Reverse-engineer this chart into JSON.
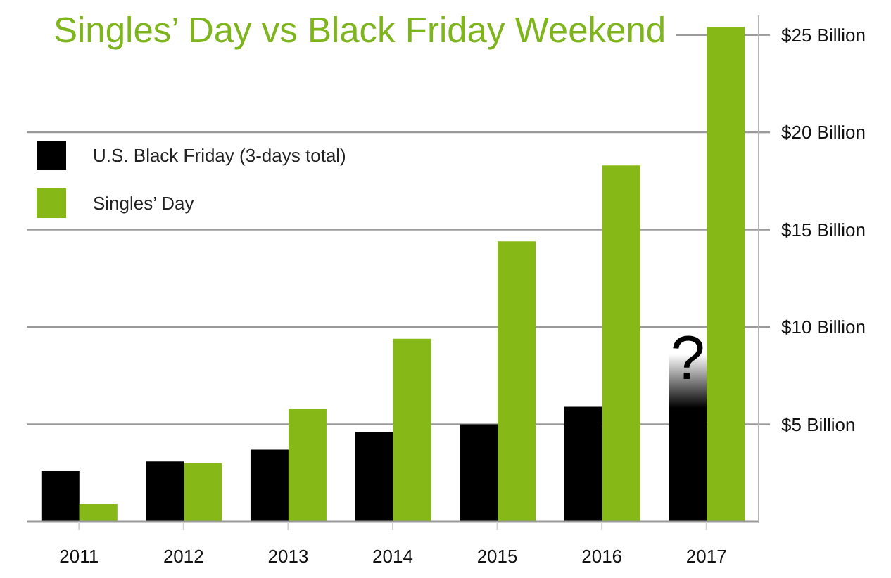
{
  "chart_data": {
    "type": "bar",
    "title": "Singles’ Day vs Black Friday Weekend",
    "categories": [
      "2011",
      "2012",
      "2013",
      "2014",
      "2015",
      "2016",
      "2017"
    ],
    "series": [
      {
        "name": "U.S. Black Friday (3-days total)",
        "color": "#000000",
        "values": [
          2.6,
          3.1,
          3.7,
          4.6,
          5.0,
          5.9,
          8.6
        ]
      },
      {
        "name": "Singles’ Day",
        "color": "#86b817",
        "values": [
          0.9,
          3.0,
          5.8,
          9.4,
          14.4,
          18.3,
          25.4
        ]
      }
    ],
    "ylim": [
      0,
      26
    ],
    "yticks": [
      {
        "value": 5,
        "label": "$5 Billion"
      },
      {
        "value": 10,
        "label": "$10 Billion"
      },
      {
        "value": 15,
        "label": "$15 Billion"
      },
      {
        "value": 20,
        "label": "$20 Billion"
      },
      {
        "value": 25,
        "label": "$25 Billion"
      }
    ],
    "grid": "y",
    "legend": "top left",
    "annotations": [
      {
        "text": "?",
        "x": "2017",
        "y": 8.6
      }
    ]
  }
}
